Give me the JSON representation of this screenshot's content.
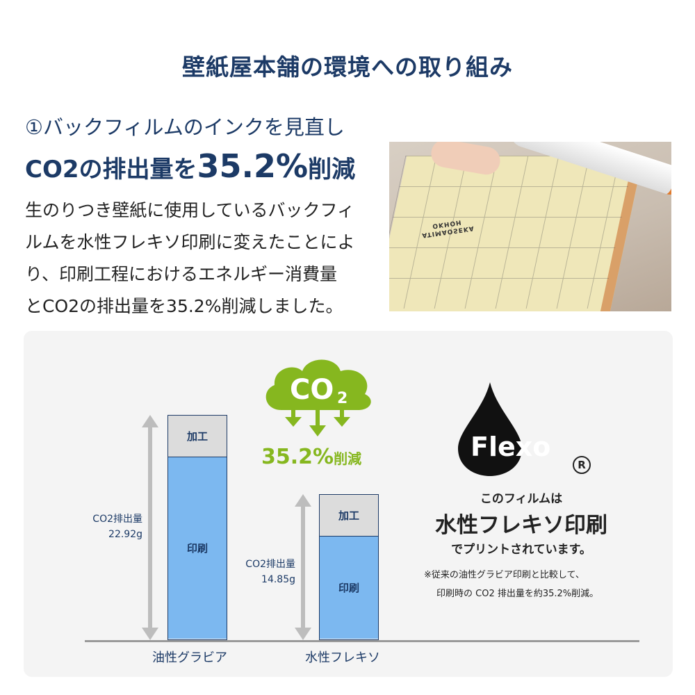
{
  "title": "壁紙屋本舗の環境への取り組み",
  "subtitle": "①バックフィルムのインクを見直し",
  "headline": {
    "prefix": "CO2の排出量を",
    "value": "35.2%",
    "suffix": "削減"
  },
  "body_lines": [
    "生のりつき壁紙に使用しているバックフィ",
    "ルムを水性フレキソ印刷に変えたことによ",
    "り、印刷工程におけるエネルギー消費量",
    "とCO2の排出量を35.2%削減しました。"
  ],
  "photo": {
    "film_text": "ATIMAOSEKA OKHOH"
  },
  "cloud": {
    "label": "CO",
    "subscript": "2",
    "color": "#86b71f"
  },
  "reduction": {
    "value": "35.2%",
    "suffix": "削減"
  },
  "chart_data": {
    "type": "bar",
    "categories": [
      "油性グラビア",
      "水性フレキソ"
    ],
    "values": [
      22.92,
      14.85
    ],
    "unit": "g",
    "segments": [
      "印刷",
      "加工"
    ],
    "value_labels": [
      [
        "CO2排出量",
        "22.92g"
      ],
      [
        "CO2排出量",
        "14.85g"
      ]
    ],
    "colors": {
      "印刷": "#7cb8f0",
      "加工": "#dcdcdc"
    }
  },
  "flexo": {
    "logo": "Flexo",
    "registered": "R",
    "line1": "このフィルムは",
    "line2": "水性フレキソ印刷",
    "line3": "でプリントされています。",
    "note1": "※従来の油性グラビア印刷と比較して、",
    "note2": "印刷時の CO2 排出量を約35.2%削減。"
  }
}
